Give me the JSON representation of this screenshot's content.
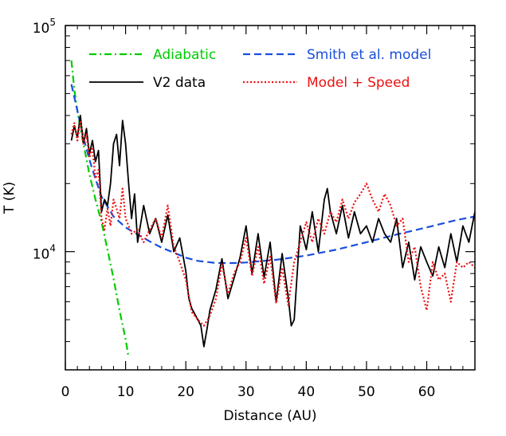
{
  "chart_data": {
    "type": "line",
    "xlabel": "Distance (AU)",
    "ylabel": "T (K)",
    "xlim": [
      0,
      68
    ],
    "ylim": [
      3000,
      100000
    ],
    "yscale": "log",
    "x_ticks": [
      0,
      10,
      20,
      30,
      40,
      50,
      60
    ],
    "x_tick_labels": [
      "0",
      "10",
      "20",
      "30",
      "40",
      "50",
      "60"
    ],
    "y_tick_labels": [
      {
        "value": 10000,
        "base": "10",
        "exp": "4"
      },
      {
        "value": 100000,
        "base": "10",
        "exp": "5"
      }
    ],
    "grid": false,
    "legend_placement": "top",
    "series": [
      {
        "name": "Adiabatic",
        "color": "#00cc00",
        "style": "dash-dot",
        "x": [
          1,
          1.5,
          2,
          2.5,
          3,
          4,
          5,
          6,
          7,
          8,
          9,
          10,
          10.5
        ],
        "y": [
          70000,
          52000,
          42000,
          35000,
          30000,
          22000,
          17000,
          13500,
          10200,
          7600,
          5500,
          4100,
          3400
        ]
      },
      {
        "name": "Smith et al. model",
        "color": "#1a4fdd",
        "style": "dashed",
        "x": [
          1,
          2,
          3,
          4,
          5,
          6,
          8,
          10,
          12,
          14,
          16,
          18,
          20,
          22,
          25,
          28,
          30,
          35,
          40,
          45,
          50,
          55,
          60,
          65,
          68
        ],
        "y": [
          55000,
          42000,
          32000,
          25500,
          21000,
          17500,
          14300,
          12800,
          11900,
          11100,
          10400,
          9900,
          9400,
          9100,
          8900,
          8900,
          8950,
          9200,
          9600,
          10200,
          11000,
          11900,
          12800,
          13800,
          14300
        ]
      },
      {
        "name": "V2 data",
        "color": "#000000",
        "style": "solid",
        "x": [
          1,
          1.5,
          2,
          2.5,
          3,
          3.5,
          4,
          4.5,
          5,
          5.5,
          6,
          6.5,
          7,
          7.5,
          8,
          8.5,
          9,
          9.5,
          10,
          10.5,
          11,
          11.5,
          12,
          13,
          14,
          15,
          16,
          17,
          18,
          19,
          20,
          20.5,
          21,
          22,
          22.5,
          23,
          23.5,
          24,
          25,
          26,
          27,
          28,
          29,
          30,
          31,
          32,
          33,
          34,
          35,
          36,
          37,
          37.5,
          38,
          39,
          40,
          41,
          42,
          43,
          43.5,
          44,
          45,
          46,
          47,
          48,
          49,
          50,
          51,
          52,
          53,
          54,
          55,
          56,
          57,
          58,
          59,
          60,
          61,
          62,
          63,
          64,
          65,
          66,
          67,
          68
        ],
        "y": [
          31000,
          36000,
          32000,
          40000,
          30000,
          35000,
          27000,
          31000,
          25000,
          28000,
          15000,
          17000,
          16000,
          20000,
          30000,
          33000,
          24000,
          38000,
          30000,
          20000,
          14000,
          18000,
          11000,
          16000,
          12000,
          14000,
          11000,
          14500,
          10000,
          11500,
          8200,
          6200,
          5600,
          5000,
          4700,
          3800,
          4500,
          5500,
          6800,
          9300,
          6200,
          7600,
          9400,
          13000,
          8000,
          12000,
          7700,
          11000,
          6000,
          9800,
          6300,
          4700,
          5000,
          13000,
          10200,
          15000,
          10000,
          17000,
          19000,
          15000,
          12000,
          16000,
          11500,
          15000,
          12000,
          13000,
          11000,
          14000,
          12000,
          11000,
          14000,
          8500,
          11000,
          7500,
          10500,
          9000,
          7800,
          10500,
          8500,
          12000,
          9000,
          13000,
          11000,
          15000
        ]
      },
      {
        "name": "Model + Speed",
        "color": "#ee1111",
        "style": "dotted",
        "x": [
          1,
          1.5,
          2,
          2.5,
          3,
          3.5,
          4,
          4.5,
          5,
          5.5,
          6,
          6.5,
          7,
          7.5,
          8,
          8.5,
          9,
          9.5,
          10,
          10.5,
          11,
          12,
          13,
          14,
          15,
          16,
          17,
          18,
          19,
          20,
          21,
          22,
          23,
          24,
          25,
          26,
          27,
          28,
          29,
          30,
          31,
          32,
          33,
          34,
          35,
          36,
          37,
          38,
          39,
          40,
          41,
          42,
          43,
          44,
          45,
          46,
          47,
          48,
          49,
          50,
          51,
          52,
          53,
          54,
          55,
          56,
          57,
          58,
          59,
          60,
          61,
          62,
          63,
          64,
          65,
          66,
          67,
          68
        ],
        "y": [
          33000,
          37000,
          31000,
          38000,
          30000,
          33000,
          26000,
          29000,
          21000,
          23000,
          14000,
          12500,
          15500,
          13000,
          17000,
          15500,
          14000,
          19000,
          14000,
          13000,
          12000,
          12500,
          11000,
          12500,
          14000,
          11500,
          16000,
          10500,
          9000,
          7500,
          5400,
          5000,
          4700,
          5200,
          6200,
          8800,
          6500,
          8000,
          9000,
          11500,
          7800,
          10500,
          7200,
          9500,
          5900,
          8500,
          5800,
          9000,
          11000,
          13500,
          11000,
          14000,
          12000,
          15000,
          13500,
          17000,
          14000,
          16500,
          18000,
          20000,
          17000,
          15000,
          18000,
          16000,
          13000,
          14000,
          9000,
          10500,
          7000,
          5500,
          9000,
          7500,
          8000,
          6000,
          9000,
          8500,
          9000,
          8500
        ]
      }
    ]
  }
}
